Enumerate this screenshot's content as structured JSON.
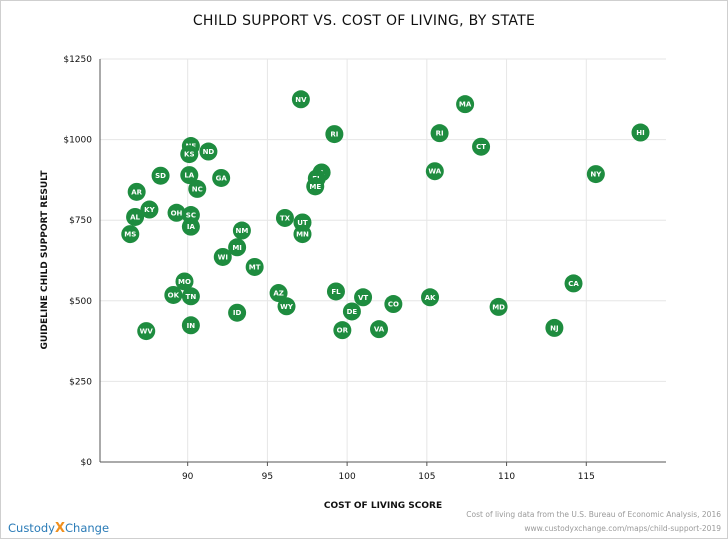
{
  "chart_data": {
    "type": "scatter",
    "title": "CHILD SUPPORT VS. COST OF LIVING, BY STATE",
    "xlabel": "COST OF LIVING SCORE",
    "ylabel": "GUIDELINE CHILD SUPPORT RESULT",
    "xlim": [
      84.5,
      120
    ],
    "ylim": [
      0,
      1250
    ],
    "xticks": [
      90,
      95,
      100,
      105,
      110,
      115
    ],
    "xtick_labels": [
      "90",
      "95",
      "100",
      "105",
      "110",
      "115"
    ],
    "yticks": [
      0,
      250,
      500,
      750,
      1000,
      1250
    ],
    "ytick_labels": [
      "$0",
      "$250",
      "$500",
      "$750",
      "$1000",
      "$1250"
    ],
    "grid": true,
    "marker_color": "#1e8c3f",
    "points": [
      {
        "label": "NV",
        "x": 97.1,
        "y": 1125
      },
      {
        "label": "MA",
        "x": 107.4,
        "y": 1110
      },
      {
        "label": "RI",
        "x": 99.2,
        "y": 1017
      },
      {
        "label": "RI",
        "x": 105.8,
        "y": 1020
      },
      {
        "label": "HI",
        "x": 118.4,
        "y": 1022
      },
      {
        "label": "CT",
        "x": 108.4,
        "y": 978
      },
      {
        "label": "NE",
        "x": 90.2,
        "y": 980
      },
      {
        "label": "ND",
        "x": 91.3,
        "y": 963
      },
      {
        "label": "KS",
        "x": 90.1,
        "y": 955
      },
      {
        "label": "SD",
        "x": 88.3,
        "y": 888
      },
      {
        "label": "LA",
        "x": 90.1,
        "y": 890
      },
      {
        "label": "GA",
        "x": 92.1,
        "y": 881
      },
      {
        "label": "NC",
        "x": 90.6,
        "y": 847
      },
      {
        "label": "AR",
        "x": 86.8,
        "y": 838
      },
      {
        "label": "WA",
        "x": 105.5,
        "y": 902
      },
      {
        "label": "NY",
        "x": 115.6,
        "y": 893
      },
      {
        "label": "IL",
        "x": 98.4,
        "y": 898
      },
      {
        "label": "FL",
        "x": 98.1,
        "y": 880
      },
      {
        "label": "ME",
        "x": 98.0,
        "y": 855
      },
      {
        "label": "KY",
        "x": 87.6,
        "y": 783
      },
      {
        "label": "AL",
        "x": 86.7,
        "y": 760
      },
      {
        "label": "OH",
        "x": 89.3,
        "y": 773
      },
      {
        "label": "SC",
        "x": 90.2,
        "y": 766
      },
      {
        "label": "IA",
        "x": 90.2,
        "y": 730
      },
      {
        "label": "MS",
        "x": 86.4,
        "y": 707
      },
      {
        "label": "TX",
        "x": 96.1,
        "y": 757
      },
      {
        "label": "UT",
        "x": 97.2,
        "y": 743
      },
      {
        "label": "MN",
        "x": 97.2,
        "y": 707
      },
      {
        "label": "NM",
        "x": 93.4,
        "y": 718
      },
      {
        "label": "MI",
        "x": 93.1,
        "y": 666
      },
      {
        "label": "WI",
        "x": 92.2,
        "y": 636
      },
      {
        "label": "MT",
        "x": 94.2,
        "y": 605
      },
      {
        "label": "MO",
        "x": 89.8,
        "y": 560
      },
      {
        "label": "OK",
        "x": 89.1,
        "y": 518
      },
      {
        "label": "TN",
        "x": 90.2,
        "y": 514
      },
      {
        "label": "AZ",
        "x": 95.7,
        "y": 524
      },
      {
        "label": "WY",
        "x": 96.2,
        "y": 483
      },
      {
        "label": "ID",
        "x": 93.1,
        "y": 463
      },
      {
        "label": "IN",
        "x": 90.2,
        "y": 424
      },
      {
        "label": "WV",
        "x": 87.4,
        "y": 406
      },
      {
        "label": "FL",
        "x": 99.3,
        "y": 529
      },
      {
        "label": "VT",
        "x": 101.0,
        "y": 511
      },
      {
        "label": "DE",
        "x": 100.3,
        "y": 467
      },
      {
        "label": "CO",
        "x": 102.9,
        "y": 490
      },
      {
        "label": "OR",
        "x": 99.7,
        "y": 409
      },
      {
        "label": "VA",
        "x": 102.0,
        "y": 412
      },
      {
        "label": "AK",
        "x": 105.2,
        "y": 511
      },
      {
        "label": "MD",
        "x": 109.5,
        "y": 481
      },
      {
        "label": "CA",
        "x": 114.2,
        "y": 554
      },
      {
        "label": "NJ",
        "x": 113.0,
        "y": 416
      }
    ]
  },
  "footer": {
    "source": "Cost of living data from the U.S. Bureau of Economic Analysis, 2016",
    "url": "www.custodyxchange.com/maps/child-support-2019"
  },
  "brand": {
    "part1": "Custody",
    "part2": "X",
    "part3": "Change",
    "color_primary": "#2a7bb7",
    "color_accent": "#f0901e"
  }
}
